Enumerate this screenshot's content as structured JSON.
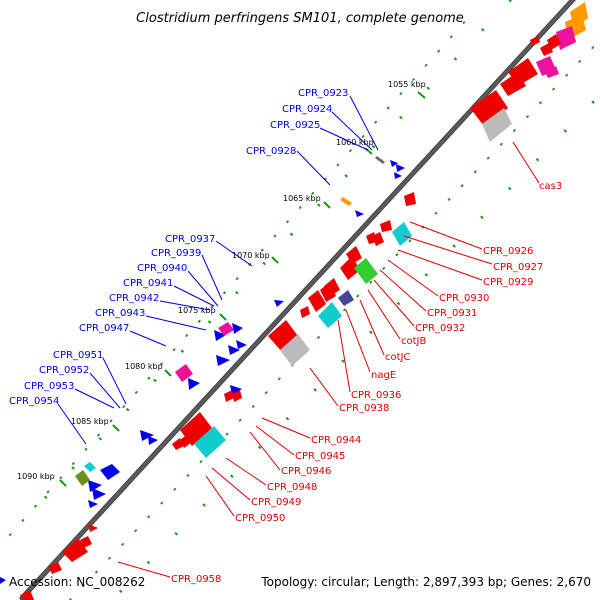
{
  "title": "Clostridium perfringens SM101, complete genome",
  "footer": {
    "accession": "Accession: NC_008262",
    "topology": "Topology: circular; Length: 2,897,393 bp; Genes: 2,670"
  },
  "ticks": [
    "1055 kbp",
    "1060 kbp",
    "1065 kbp",
    "1070 kbp",
    "1075 kbp",
    "1080 kbp",
    "1085 kbp",
    "1090 kbp"
  ],
  "labels_blue": [
    "CPR_0923",
    "CPR_0924",
    "CPR_0925",
    "CPR_0928",
    "CPR_0937",
    "CPR_0939",
    "CPR_0940",
    "CPR_0941",
    "CPR_0942",
    "CPR_0943",
    "CPR_0947",
    "CPR_0951",
    "CPR_0952",
    "CPR_0953",
    "CPR_0954"
  ],
  "labels_red": [
    "cas3",
    "CPR_0926",
    "CPR_0927",
    "CPR_0929",
    "CPR_0930",
    "CPR_0931",
    "CPR_0932",
    "cotJB",
    "cotJC",
    "nagE",
    "CPR_0936",
    "CPR_0938",
    "CPR_0944",
    "CPR_0945",
    "CPR_0946",
    "CPR_0948",
    "CPR_0949",
    "CPR_0950",
    "CPR_0958"
  ],
  "colors": {
    "backbone": "#777777",
    "forward": "#0000ee",
    "reverse": "#ee0000",
    "label_blue": "#0000dd",
    "label_red": "#dd0000",
    "rna_track": "#008800",
    "magenta": "#ee1199",
    "cyan": "#11cccc",
    "grey": "#bbbbbb",
    "green": "#33cc33",
    "navy": "#444499",
    "orange": "#ff9900"
  }
}
